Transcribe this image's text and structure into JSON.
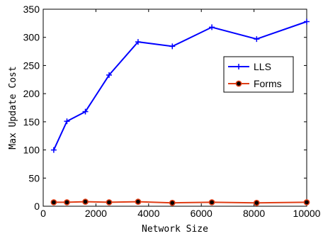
{
  "chart_data": {
    "type": "line",
    "title": "",
    "xlabel": "Network Size",
    "ylabel": "Max Update Cost",
    "xlim": [
      0,
      10000
    ],
    "ylim": [
      0,
      350
    ],
    "xticks": [
      0,
      2000,
      4000,
      6000,
      8000,
      10000
    ],
    "yticks": [
      0,
      50,
      100,
      150,
      200,
      250,
      300,
      350
    ],
    "grid": false,
    "legend_position": "upper-right",
    "series": [
      {
        "name": "LLS",
        "color": "#0000ff",
        "marker": "plus",
        "x": [
          400,
          900,
          1600,
          2500,
          3600,
          4900,
          6400,
          8100,
          10000
        ],
        "y": [
          100,
          151,
          168,
          233,
          292,
          284,
          318,
          297,
          328
        ]
      },
      {
        "name": "Forms",
        "color": "#e03c14",
        "marker": "filled-circle",
        "x": [
          400,
          900,
          1600,
          2500,
          3600,
          4900,
          6400,
          8100,
          10000
        ],
        "y": [
          7,
          7,
          8,
          7,
          8,
          6,
          7,
          6,
          7
        ]
      }
    ]
  }
}
